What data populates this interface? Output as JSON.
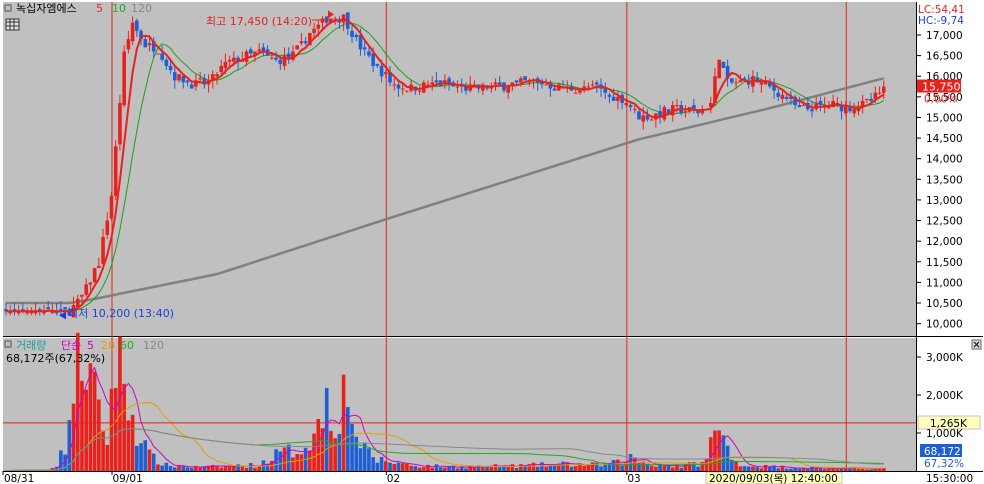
{
  "title": "녹십자엠에스",
  "ma_labels": [
    {
      "text": "5",
      "color": "#e03030"
    },
    {
      "text": "10",
      "color": "#22aa22"
    },
    {
      "text": "120",
      "color": "#888888"
    }
  ],
  "lc": "LC:54,41",
  "hc": "HC:-9,74",
  "high_note": "최고 17,450 (14:20)",
  "low_note": "최저 10,200 (13:40)",
  "current_price": "15,750",
  "current_change": "0,00%",
  "vol_title": "거래량",
  "vol_legend": [
    {
      "text": "단순",
      "color": "#cc00cc"
    },
    {
      "text": "5",
      "color": "#cc00cc"
    },
    {
      "text": "20",
      "color": "#e0a000"
    },
    {
      "text": "60",
      "color": "#22aa22"
    },
    {
      "text": "120",
      "color": "#888888"
    }
  ],
  "vol_current": "68,172주(67,32%)",
  "vol_hline_label": "1,265K",
  "vol_current_label": "68,172",
  "vol_current_pct": "67,32%",
  "x_labels": [
    "08/31",
    "09/01",
    "02",
    "03"
  ],
  "cursor_time": "2020/09/03(목) 12:40:00",
  "time_label": "15:30:00",
  "colors": {
    "up": "#e8211c",
    "down": "#1e5fd6",
    "ma5": "#e8211c",
    "ma10": "#1f9e1f",
    "ma120": "#808080",
    "bg": "#c0c0c0"
  },
  "chart_data": {
    "type": "candlestick",
    "price_axis": {
      "min": 9700,
      "max": 17800,
      "ticks": [
        10000,
        10500,
        11000,
        11500,
        12000,
        12500,
        13000,
        13500,
        14000,
        14500,
        15000,
        15500,
        16000,
        16500,
        17000
      ]
    },
    "price_tick_labels": [
      "10,000",
      "10,500",
      "11,000",
      "11,500",
      "12,000",
      "12,500",
      "13,000",
      "13,500",
      "14,000",
      "14,500",
      "15,000",
      "15,500",
      "16,000",
      "16,500",
      "17,000"
    ],
    "volume_axis": {
      "min": 0,
      "max": 3500000,
      "ticks": [
        1000000,
        2000000,
        3000000
      ]
    },
    "volume_tick_labels": [
      "1,000K",
      "2,000K",
      "3,000K"
    ],
    "volume_hline": 1265000,
    "high": 17450,
    "low": 10200,
    "current": 15750,
    "cursor_index": 199,
    "day_boundaries": [
      25,
      90,
      147
    ],
    "ohlc_keys": [
      [
        0,
        10250
      ],
      [
        12,
        10250
      ],
      [
        15,
        10300
      ],
      [
        18,
        10650
      ],
      [
        22,
        11500
      ],
      [
        25,
        13100
      ],
      [
        28,
        16500
      ],
      [
        30,
        17300
      ],
      [
        33,
        16750
      ],
      [
        36,
        16650
      ],
      [
        40,
        16000
      ],
      [
        44,
        15800
      ],
      [
        48,
        15850
      ],
      [
        52,
        16300
      ],
      [
        56,
        16450
      ],
      [
        60,
        16600
      ],
      [
        64,
        16350
      ],
      [
        68,
        16500
      ],
      [
        72,
        17050
      ],
      [
        76,
        17400
      ],
      [
        80,
        17420
      ],
      [
        84,
        16700
      ],
      [
        88,
        16200
      ],
      [
        92,
        15800
      ],
      [
        96,
        15700
      ],
      [
        100,
        15800
      ],
      [
        104,
        15800
      ],
      [
        108,
        15700
      ],
      [
        112,
        15700
      ],
      [
        116,
        15750
      ],
      [
        120,
        15800
      ],
      [
        124,
        15850
      ],
      [
        128,
        15800
      ],
      [
        132,
        15700
      ],
      [
        136,
        15700
      ],
      [
        140,
        15750
      ],
      [
        143,
        15500
      ],
      [
        146,
        15450
      ],
      [
        150,
        15050
      ],
      [
        153,
        15000
      ],
      [
        156,
        15150
      ],
      [
        160,
        15200
      ],
      [
        164,
        15150
      ],
      [
        167,
        15350
      ],
      [
        169,
        16500
      ],
      [
        171,
        15850
      ],
      [
        174,
        15850
      ],
      [
        177,
        15900
      ],
      [
        180,
        15800
      ],
      [
        184,
        15550
      ],
      [
        188,
        15200
      ],
      [
        192,
        15250
      ],
      [
        196,
        15300
      ],
      [
        200,
        15250
      ],
      [
        204,
        15350
      ],
      [
        208,
        15650
      ]
    ],
    "volume_keys": [
      [
        0,
        15000
      ],
      [
        10,
        25000
      ],
      [
        12,
        100000
      ],
      [
        14,
        700000
      ],
      [
        16,
        2000000
      ],
      [
        18,
        3300000
      ],
      [
        20,
        2400000
      ],
      [
        22,
        1400000
      ],
      [
        24,
        900000
      ],
      [
        26,
        3000000
      ],
      [
        28,
        2300000
      ],
      [
        30,
        1400000
      ],
      [
        32,
        900000
      ],
      [
        34,
        400000
      ],
      [
        38,
        150000
      ],
      [
        45,
        100000
      ],
      [
        52,
        120000
      ],
      [
        60,
        160000
      ],
      [
        64,
        420000
      ],
      [
        70,
        600000
      ],
      [
        74,
        1100000
      ],
      [
        76,
        2100000
      ],
      [
        78,
        1300000
      ],
      [
        80,
        2000000
      ],
      [
        82,
        1600000
      ],
      [
        84,
        600000
      ],
      [
        88,
        300000
      ],
      [
        96,
        150000
      ],
      [
        105,
        110000
      ],
      [
        120,
        130000
      ],
      [
        132,
        180000
      ],
      [
        140,
        160000
      ],
      [
        146,
        230000
      ],
      [
        148,
        350000
      ],
      [
        152,
        200000
      ],
      [
        160,
        120000
      ],
      [
        166,
        260000
      ],
      [
        168,
        1200000
      ],
      [
        170,
        800000
      ],
      [
        172,
        300000
      ],
      [
        176,
        130000
      ],
      [
        185,
        100000
      ],
      [
        195,
        70000
      ],
      [
        208,
        68172
      ]
    ],
    "ma120_keys": [
      [
        0,
        10500
      ],
      [
        15,
        10500
      ],
      [
        20,
        10580
      ],
      [
        50,
        11200
      ],
      [
        90,
        12530
      ],
      [
        150,
        14470
      ],
      [
        180,
        15200
      ],
      [
        208,
        15950
      ]
    ]
  }
}
